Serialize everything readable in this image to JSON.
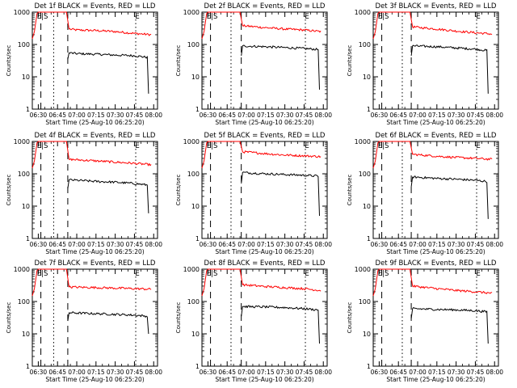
{
  "figure": {
    "xlabel": "Start Time (25-Aug-10 06:25:20)",
    "ylabel": "Counts/sec",
    "x_tick_labels": [
      "06:30",
      "06:45",
      "07:00",
      "07:15",
      "07:30",
      "07:45",
      "08:00"
    ],
    "y_tick_labels": [
      "1",
      "10",
      "100",
      "1000"
    ]
  },
  "colors": {
    "events": "#000000",
    "lld": "#ff0000",
    "axes": "#000000"
  },
  "chart_data": [
    {
      "type": "line",
      "title": "Det 1f BLACK = Events, RED = LLD",
      "xlabel": "Start Time (25-Aug-10 06:25:20)",
      "ylabel": "Counts/sec",
      "yscale": "log",
      "ylim": [
        1,
        1000
      ],
      "xlim": [
        "06:25:20",
        "08:03:00"
      ],
      "markers": [
        {
          "time": "06:32",
          "style": "dashed",
          "label": "E|S"
        },
        {
          "time": "06:42",
          "style": "dotted"
        },
        {
          "time": "06:53",
          "style": "dashed"
        },
        {
          "time": "07:46",
          "style": "dotted",
          "label": "E"
        }
      ],
      "series": [
        {
          "name": "LLD",
          "color": "red",
          "points": [
            [
              "06:25:20",
              150
            ],
            [
              "06:27",
              250
            ],
            [
              "06:29",
              900
            ],
            [
              "06:30",
              1000
            ],
            [
              "06:52",
              1000
            ],
            [
              "06:54",
              300
            ],
            [
              "07:00",
              280
            ],
            [
              "07:15",
              270
            ],
            [
              "07:30",
              250
            ],
            [
              "07:45",
              220
            ],
            [
              "07:58",
              200
            ]
          ]
        },
        {
          "name": "Events",
          "color": "black",
          "points": [
            [
              "06:53",
              35
            ],
            [
              "06:54",
              55
            ],
            [
              "07:00",
              52
            ],
            [
              "07:15",
              50
            ],
            [
              "07:30",
              47
            ],
            [
              "07:45",
              45
            ],
            [
              "07:55",
              40
            ],
            [
              "07:56",
              3
            ]
          ]
        }
      ]
    },
    {
      "type": "line",
      "title": "Det 2f BLACK = Events, RED = LLD",
      "xlabel": "Start Time (25-Aug-10 06:25:20)",
      "ylabel": "Counts/sec",
      "yscale": "log",
      "ylim": [
        1,
        1000
      ],
      "xlim": [
        "06:25:20",
        "08:03:00"
      ],
      "markers": [
        {
          "time": "06:32",
          "style": "dashed",
          "label": "E|S"
        },
        {
          "time": "06:48",
          "style": "dotted"
        },
        {
          "time": "06:56",
          "style": "dashed"
        },
        {
          "time": "07:46",
          "style": "dotted",
          "label": "E"
        }
      ],
      "series": [
        {
          "name": "LLD",
          "color": "red",
          "points": [
            [
              "06:25:20",
              150
            ],
            [
              "06:27",
              250
            ],
            [
              "06:29",
              900
            ],
            [
              "06:30",
              1000
            ],
            [
              "06:55",
              1000
            ],
            [
              "06:57",
              380
            ],
            [
              "07:15",
              330
            ],
            [
              "07:30",
              300
            ],
            [
              "07:45",
              280
            ],
            [
              "07:58",
              250
            ]
          ]
        },
        {
          "name": "Events",
          "color": "black",
          "points": [
            [
              "06:56",
              45
            ],
            [
              "06:57",
              90
            ],
            [
              "07:15",
              85
            ],
            [
              "07:30",
              80
            ],
            [
              "07:45",
              75
            ],
            [
              "07:56",
              70
            ],
            [
              "07:57",
              4
            ]
          ]
        }
      ]
    },
    {
      "type": "line",
      "title": "Det 3f BLACK = Events, RED = LLD",
      "xlabel": "Start Time (25-Aug-10 06:25:20)",
      "ylabel": "Counts/sec",
      "yscale": "log",
      "ylim": [
        1,
        1000
      ],
      "xlim": [
        "06:25:20",
        "08:03:00"
      ],
      "markers": [
        {
          "time": "06:32",
          "style": "dashed",
          "label": "E|S"
        },
        {
          "time": "06:48",
          "style": "dotted"
        },
        {
          "time": "06:55",
          "style": "dashed"
        },
        {
          "time": "07:46",
          "style": "dotted",
          "label": "E"
        }
      ],
      "series": [
        {
          "name": "LLD",
          "color": "red",
          "points": [
            [
              "06:25:20",
              150
            ],
            [
              "06:27",
              250
            ],
            [
              "06:29",
              900
            ],
            [
              "06:30",
              1000
            ],
            [
              "06:54",
              1000
            ],
            [
              "06:56",
              350
            ],
            [
              "07:15",
              300
            ],
            [
              "07:30",
              260
            ],
            [
              "07:45",
              230
            ],
            [
              "07:58",
              210
            ]
          ]
        },
        {
          "name": "Events",
          "color": "black",
          "points": [
            [
              "06:55",
              45
            ],
            [
              "06:56",
              90
            ],
            [
              "07:15",
              85
            ],
            [
              "07:30",
              78
            ],
            [
              "07:45",
              72
            ],
            [
              "07:54",
              65
            ],
            [
              "07:55",
              3
            ]
          ]
        }
      ]
    },
    {
      "type": "line",
      "title": "Det 4f BLACK = Events, RED = LLD",
      "xlabel": "Start Time (25-Aug-10 06:25:20)",
      "ylabel": "Counts/sec",
      "yscale": "log",
      "ylim": [
        1,
        1000
      ],
      "xlim": [
        "06:25:20",
        "08:03:00"
      ],
      "markers": [
        {
          "time": "06:32",
          "style": "dashed",
          "label": "E|S"
        },
        {
          "time": "06:42",
          "style": "dotted"
        },
        {
          "time": "06:53",
          "style": "dashed"
        },
        {
          "time": "07:46",
          "style": "dotted",
          "label": "E"
        }
      ],
      "series": [
        {
          "name": "LLD",
          "color": "red",
          "points": [
            [
              "06:25:20",
              150
            ],
            [
              "06:27",
              250
            ],
            [
              "06:29",
              900
            ],
            [
              "06:30",
              1000
            ],
            [
              "06:52",
              1000
            ],
            [
              "06:54",
              280
            ],
            [
              "07:15",
              250
            ],
            [
              "07:30",
              230
            ],
            [
              "07:45",
              210
            ],
            [
              "07:58",
              190
            ]
          ]
        },
        {
          "name": "Events",
          "color": "black",
          "points": [
            [
              "06:53",
              35
            ],
            [
              "06:54",
              65
            ],
            [
              "07:15",
              58
            ],
            [
              "07:30",
              55
            ],
            [
              "07:45",
              50
            ],
            [
              "07:55",
              45
            ],
            [
              "07:56",
              6
            ]
          ]
        }
      ]
    },
    {
      "type": "line",
      "title": "Det 5f BLACK = Events, RED = LLD",
      "xlabel": "Start Time (25-Aug-10 06:25:20)",
      "ylabel": "Counts/sec",
      "yscale": "log",
      "ylim": [
        1,
        1000
      ],
      "xlim": [
        "06:25:20",
        "08:03:00"
      ],
      "markers": [
        {
          "time": "06:32",
          "style": "dashed",
          "label": "E|S"
        },
        {
          "time": "06:48",
          "style": "dotted"
        },
        {
          "time": "06:56",
          "style": "dashed"
        },
        {
          "time": "07:46",
          "style": "dotted",
          "label": "E"
        }
      ],
      "series": [
        {
          "name": "LLD",
          "color": "red",
          "points": [
            [
              "06:25:20",
              150
            ],
            [
              "06:27",
              250
            ],
            [
              "06:29",
              900
            ],
            [
              "06:30",
              1000
            ],
            [
              "06:55",
              1000
            ],
            [
              "06:57",
              480
            ],
            [
              "07:15",
              420
            ],
            [
              "07:30",
              380
            ],
            [
              "07:45",
              360
            ],
            [
              "07:58",
              340
            ]
          ]
        },
        {
          "name": "Events",
          "color": "black",
          "points": [
            [
              "06:56",
              50
            ],
            [
              "06:57",
              110
            ],
            [
              "07:15",
              100
            ],
            [
              "07:30",
              95
            ],
            [
              "07:45",
              90
            ],
            [
              "07:56",
              85
            ],
            [
              "07:57",
              5
            ]
          ]
        }
      ]
    },
    {
      "type": "line",
      "title": "Det 6f BLACK = Events, RED = LLD",
      "xlabel": "Start Time (25-Aug-10 06:25:20)",
      "ylabel": "Counts/sec",
      "yscale": "log",
      "ylim": [
        1,
        1000
      ],
      "xlim": [
        "06:25:20",
        "08:03:00"
      ],
      "markers": [
        {
          "time": "06:32",
          "style": "dashed",
          "label": "E|S"
        },
        {
          "time": "06:48",
          "style": "dotted"
        },
        {
          "time": "06:55",
          "style": "dashed"
        },
        {
          "time": "07:46",
          "style": "dotted",
          "label": "E"
        }
      ],
      "series": [
        {
          "name": "LLD",
          "color": "red",
          "points": [
            [
              "06:25:20",
              150
            ],
            [
              "06:27",
              250
            ],
            [
              "06:29",
              900
            ],
            [
              "06:30",
              1000
            ],
            [
              "06:54",
              1000
            ],
            [
              "06:56",
              400
            ],
            [
              "07:15",
              350
            ],
            [
              "07:30",
              320
            ],
            [
              "07:45",
              300
            ],
            [
              "07:58",
              280
            ]
          ]
        },
        {
          "name": "Events",
          "color": "black",
          "points": [
            [
              "06:55",
              40
            ],
            [
              "06:56",
              80
            ],
            [
              "07:15",
              72
            ],
            [
              "07:30",
              68
            ],
            [
              "07:45",
              63
            ],
            [
              "07:54",
              58
            ],
            [
              "07:55",
              4
            ]
          ]
        }
      ]
    },
    {
      "type": "line",
      "title": "Det 7f BLACK = Events, RED = LLD",
      "xlabel": "Start Time (25-Aug-10 06:25:20)",
      "ylabel": "Counts/sec",
      "yscale": "log",
      "ylim": [
        1,
        1000
      ],
      "xlim": [
        "06:25:20",
        "08:03:00"
      ],
      "markers": [
        {
          "time": "06:32",
          "style": "dashed",
          "label": "E|S"
        },
        {
          "time": "06:42",
          "style": "dotted"
        },
        {
          "time": "06:53",
          "style": "dashed"
        },
        {
          "time": "07:46",
          "style": "dotted",
          "label": "E"
        }
      ],
      "series": [
        {
          "name": "LLD",
          "color": "red",
          "points": [
            [
              "06:25:20",
              150
            ],
            [
              "06:27",
              250
            ],
            [
              "06:29",
              900
            ],
            [
              "06:30",
              1000
            ],
            [
              "06:52",
              1000
            ],
            [
              "06:54",
              280
            ],
            [
              "07:15",
              270
            ],
            [
              "07:30",
              260
            ],
            [
              "07:45",
              250
            ],
            [
              "07:58",
              240
            ]
          ]
        },
        {
          "name": "Events",
          "color": "black",
          "points": [
            [
              "06:53",
              25
            ],
            [
              "06:54",
              45
            ],
            [
              "07:15",
              42
            ],
            [
              "07:30",
              40
            ],
            [
              "07:45",
              38
            ],
            [
              "07:55",
              35
            ],
            [
              "07:56",
              10
            ]
          ]
        }
      ]
    },
    {
      "type": "line",
      "title": "Det 8f BLACK = Events, RED = LLD",
      "xlabel": "Start Time (25-Aug-10 06:25:20)",
      "ylabel": "Counts/sec",
      "yscale": "log",
      "ylim": [
        1,
        1000
      ],
      "xlim": [
        "06:25:20",
        "08:03:00"
      ],
      "markers": [
        {
          "time": "06:32",
          "style": "dashed",
          "label": "E|S"
        },
        {
          "time": "06:48",
          "style": "dotted"
        },
        {
          "time": "06:56",
          "style": "dashed"
        },
        {
          "time": "07:46",
          "style": "dotted",
          "label": "E"
        }
      ],
      "series": [
        {
          "name": "LLD",
          "color": "red",
          "points": [
            [
              "06:25:20",
              150
            ],
            [
              "06:27",
              250
            ],
            [
              "06:29",
              900
            ],
            [
              "06:30",
              1000
            ],
            [
              "06:55",
              1000
            ],
            [
              "06:57",
              330
            ],
            [
              "07:15",
              290
            ],
            [
              "07:30",
              270
            ],
            [
              "07:45",
              250
            ],
            [
              "07:58",
              220
            ]
          ]
        },
        {
          "name": "Events",
          "color": "black",
          "points": [
            [
              "06:56",
              35
            ],
            [
              "06:57",
              70
            ],
            [
              "07:15",
              68
            ],
            [
              "07:30",
              65
            ],
            [
              "07:45",
              60
            ],
            [
              "07:56",
              55
            ],
            [
              "07:57",
              5
            ]
          ]
        }
      ]
    },
    {
      "type": "line",
      "title": "Det 9f BLACK = Events, RED = LLD",
      "xlabel": "Start Time (25-Aug-10 06:25:20)",
      "ylabel": "Counts/sec",
      "yscale": "log",
      "ylim": [
        1,
        1000
      ],
      "xlim": [
        "06:25:20",
        "08:03:00"
      ],
      "markers": [
        {
          "time": "06:32",
          "style": "dashed",
          "label": "E|S"
        },
        {
          "time": "06:48",
          "style": "dotted"
        },
        {
          "time": "06:55",
          "style": "dashed"
        },
        {
          "time": "07:46",
          "style": "dotted",
          "label": "E"
        }
      ],
      "series": [
        {
          "name": "LLD",
          "color": "red",
          "points": [
            [
              "06:25:20",
              150
            ],
            [
              "06:27",
              250
            ],
            [
              "06:29",
              900
            ],
            [
              "06:30",
              1000
            ],
            [
              "06:54",
              1000
            ],
            [
              "06:56",
              300
            ],
            [
              "07:15",
              250
            ],
            [
              "07:30",
              220
            ],
            [
              "07:45",
              200
            ],
            [
              "07:58",
              180
            ]
          ]
        },
        {
          "name": "Events",
          "color": "black",
          "points": [
            [
              "06:55",
              30
            ],
            [
              "06:56",
              60
            ],
            [
              "07:15",
              57
            ],
            [
              "07:30",
              55
            ],
            [
              "07:45",
              52
            ],
            [
              "07:54",
              48
            ],
            [
              "07:55",
              5
            ]
          ]
        }
      ]
    }
  ]
}
